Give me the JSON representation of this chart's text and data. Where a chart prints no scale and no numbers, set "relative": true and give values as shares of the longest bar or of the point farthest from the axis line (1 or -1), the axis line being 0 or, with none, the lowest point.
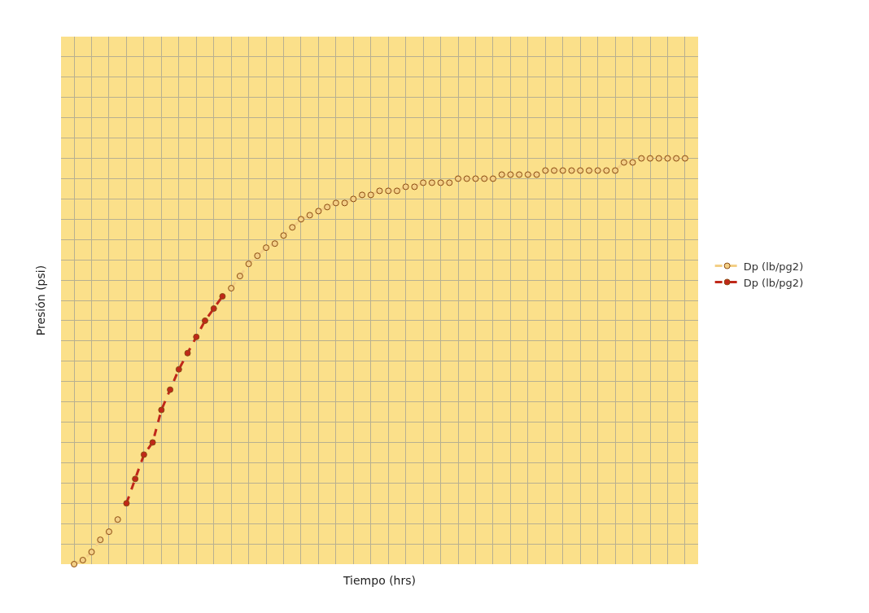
{
  "chart_data": {
    "type": "line",
    "xlabel": "Tiempo (hrs)",
    "ylabel": "Presión (psi)",
    "relative": true,
    "tick_labels": false,
    "grid": true,
    "legend": "right",
    "marker": "circle",
    "line_style": "dashed",
    "categories": [
      null,
      null,
      null,
      null,
      null,
      null,
      null,
      null,
      null,
      null,
      null,
      null,
      null,
      null,
      null,
      null,
      null,
      null,
      null,
      null,
      null,
      null,
      null,
      null,
      null,
      null,
      null,
      null,
      null,
      null,
      null,
      null,
      null,
      null,
      null,
      null,
      null,
      null,
      null,
      null,
      null,
      null,
      null,
      null,
      null,
      null,
      null,
      null,
      null,
      null,
      null,
      null,
      null,
      null,
      null,
      null,
      null,
      null,
      null,
      null,
      null,
      null,
      null,
      null,
      null,
      null,
      null,
      null,
      null,
      null,
      null
    ],
    "series": [
      {
        "name": "Dp (lb/pg2)",
        "color": "#f3cf86",
        "values": [
          0,
          0.01,
          0.03,
          0.06,
          0.08,
          0.11,
          null,
          null,
          null,
          null,
          null,
          null,
          null,
          null,
          null,
          null,
          null,
          null,
          0.68,
          0.71,
          0.74,
          0.76,
          0.78,
          0.79,
          0.81,
          0.83,
          0.85,
          0.86,
          0.87,
          0.88,
          0.89,
          0.89,
          0.9,
          0.91,
          0.91,
          0.92,
          0.92,
          0.92,
          0.93,
          0.93,
          0.94,
          0.94,
          0.94,
          0.94,
          0.95,
          0.95,
          0.95,
          0.95,
          0.95,
          0.96,
          0.96,
          0.96,
          0.96,
          0.96,
          0.97,
          0.97,
          0.97,
          0.97,
          0.97,
          0.97,
          0.97,
          0.97,
          0.97,
          0.99,
          0.99,
          1.0,
          1.0,
          1.0,
          1.0,
          1.0,
          1.0
        ]
      },
      {
        "name": "Dp (lb/pg2)",
        "color": "#c0281a",
        "values": [
          null,
          null,
          null,
          null,
          null,
          null,
          0.15,
          0.21,
          0.27,
          0.3,
          0.38,
          0.43,
          0.48,
          0.52,
          0.56,
          0.6,
          0.63,
          0.66,
          null,
          null,
          null,
          null,
          null,
          null,
          null,
          null,
          null,
          null,
          null,
          null,
          null,
          null,
          null,
          null,
          null,
          null,
          null,
          null,
          null,
          null,
          null,
          null,
          null,
          null,
          null,
          null,
          null,
          null,
          null,
          null,
          null,
          null,
          null,
          null,
          null,
          null,
          null,
          null,
          null,
          null,
          null,
          null,
          null,
          null,
          null,
          null,
          null,
          null,
          null,
          null,
          null
        ]
      }
    ]
  }
}
